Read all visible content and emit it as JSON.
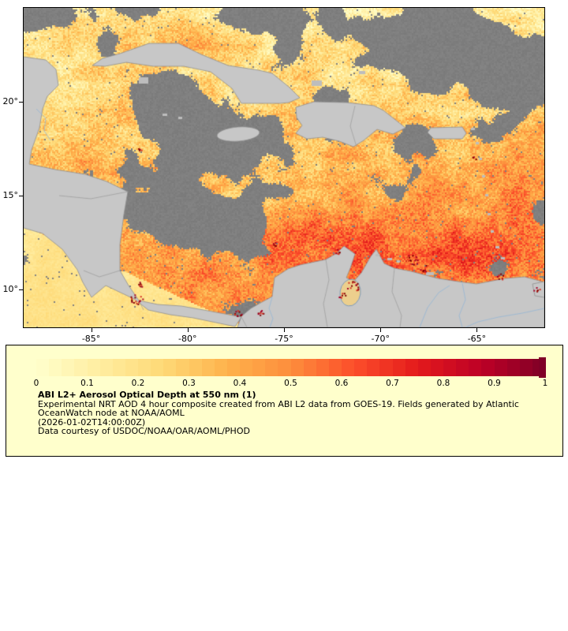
{
  "map": {
    "extent": {
      "lon_min": -88.5,
      "lon_max": -61.5,
      "lat_min": 8,
      "lat_max": 25
    },
    "x_axis": {
      "ticks": [
        {
          "label": "-85°",
          "lon": -85
        },
        {
          "label": "-80°",
          "lon": -80
        },
        {
          "label": "-75°",
          "lon": -75
        },
        {
          "label": "-70°",
          "lon": -70
        },
        {
          "label": "-65°",
          "lon": -65
        }
      ]
    },
    "y_axis": {
      "ticks": [
        {
          "label": "20°",
          "lat": 20
        },
        {
          "label": "15°",
          "lat": 15
        },
        {
          "label": "10°",
          "lat": 10
        }
      ]
    },
    "nodata_color": "#7d7d7d",
    "land_color": "#c7c7c7",
    "coast_color": "#8f8f8f",
    "river_color": "#94b6d6"
  },
  "legend": {
    "background": "#ffffcc",
    "border_color": "#000000",
    "ticks": [
      "0",
      "0.1",
      "0.2",
      "0.3",
      "0.4",
      "0.5",
      "0.6",
      "0.7",
      "0.8",
      "0.9",
      "1"
    ],
    "title": "ABI L2+ Aerosol Optical Depth at 550 nm (1)",
    "line1": "Experimental NRT AOD 4 hour composite created from ABI L2 data from GOES-19. Fields generated by Atlantic",
    "line2": "OceanWatch node at NOAA/AOML",
    "timestamp": "(2026-01-02T14:00:00Z)",
    "courtesy": "Data courtesy of USDOC/NOAA/OAR/AOML/PHOD",
    "colormap_stops": [
      {
        "v": 0.0,
        "c": "#ffffcc"
      },
      {
        "v": 0.125,
        "c": "#ffeda0"
      },
      {
        "v": 0.25,
        "c": "#fed976"
      },
      {
        "v": 0.375,
        "c": "#feb24c"
      },
      {
        "v": 0.5,
        "c": "#fd8d3c"
      },
      {
        "v": 0.625,
        "c": "#fc4e2a"
      },
      {
        "v": 0.75,
        "c": "#e31a1c"
      },
      {
        "v": 0.875,
        "c": "#bd0026"
      },
      {
        "v": 1.0,
        "c": "#800026"
      }
    ]
  },
  "chart_data": {
    "type": "heatmap",
    "title": "ABI L2+ Aerosol Optical Depth at 550 nm (1)",
    "variable": "Aerosol Optical Depth (AOD) at 550 nm",
    "source": "ABI L2 data from GOES-19",
    "colormap": "YlOrRd",
    "colorbar_range": [
      0,
      1
    ],
    "colorbar_ticks": [
      0,
      0.1,
      0.2,
      0.3,
      0.4,
      0.5,
      0.6,
      0.7,
      0.8,
      0.9,
      1
    ],
    "x_tick_lons": [
      -85,
      -80,
      -75,
      -70,
      -65
    ],
    "y_tick_lats": [
      20,
      15,
      10
    ],
    "extent": {
      "lon": [
        -88.5,
        -61.5
      ],
      "lat": [
        8,
        25
      ]
    },
    "legend_position": "bottom",
    "timestamp": "2026-01-02T14:00:00Z"
  }
}
